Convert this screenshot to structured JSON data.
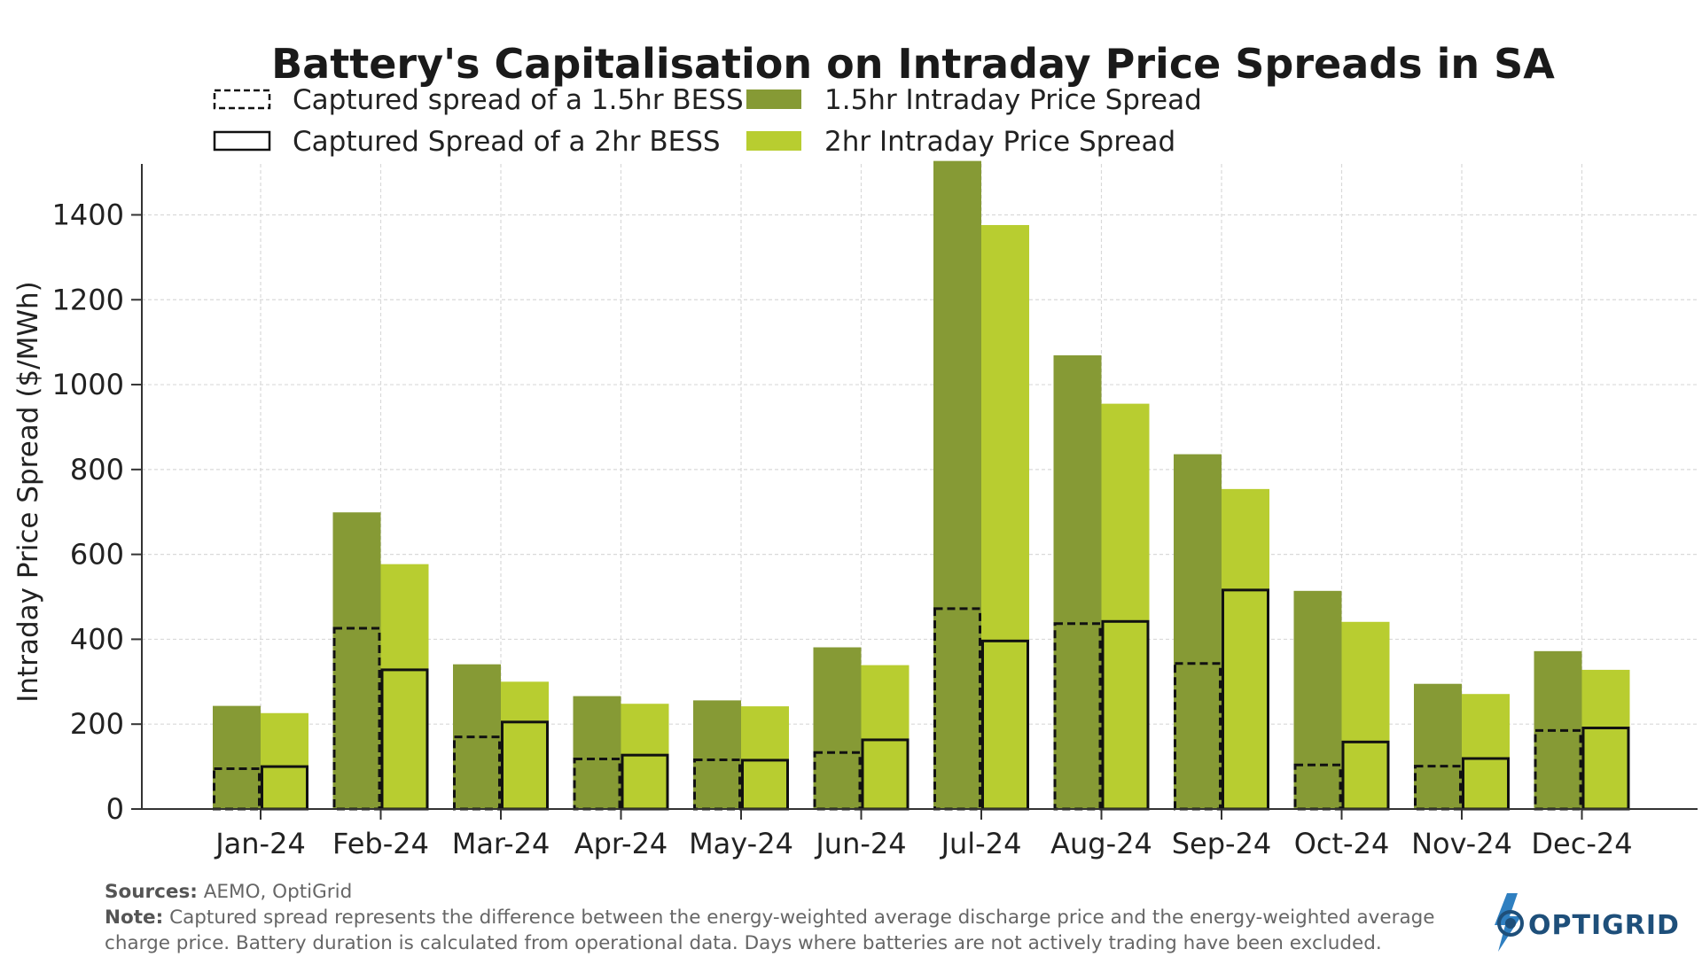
{
  "chart_data": {
    "type": "bar",
    "title": "Battery's Capitalisation on Intraday Price Spreads in SA",
    "xlabel": "",
    "ylabel": "Intraday Price Spread ($/MWh)",
    "ylim": [
      0,
      1520
    ],
    "yticks": [
      0,
      200,
      400,
      600,
      800,
      1000,
      1200,
      1400
    ],
    "grid": true,
    "legend_position": "top",
    "categories": [
      "Jan-24",
      "Feb-24",
      "Mar-24",
      "Apr-24",
      "May-24",
      "Jun-24",
      "Jul-24",
      "Aug-24",
      "Sep-24",
      "Oct-24",
      "Nov-24",
      "Dec-24"
    ],
    "series": [
      {
        "name": "1.5hr Intraday Price Spread",
        "color": "#869a35",
        "values": [
          243,
          699,
          341,
          266,
          256,
          381,
          1527,
          1069,
          836,
          514,
          295,
          372
        ]
      },
      {
        "name": "2hr Intraday Price Spread",
        "color": "#b8cd30",
        "values": [
          226,
          577,
          300,
          248,
          242,
          339,
          1376,
          955,
          754,
          441,
          271,
          328
        ]
      },
      {
        "name": "Captured spread of a 1.5hr BESS",
        "style": "dashed-outline",
        "values": [
          95,
          426,
          170,
          118,
          116,
          133,
          472,
          437,
          343,
          104,
          101,
          185
        ]
      },
      {
        "name": "Captured Spread of a 2hr BESS",
        "style": "solid-outline",
        "values": [
          100,
          328,
          205,
          127,
          115,
          163,
          396,
          442,
          516,
          158,
          119,
          191
        ]
      }
    ]
  },
  "footer": {
    "sources_label": "Sources:",
    "sources_text": " AEMO, OptiGrid",
    "note_label": "Note:",
    "note_text": " Captured spread represents the difference between the energy-weighted average discharge price and the energy-weighted average charge price. Battery duration is calculated from operational data. Days where batteries are not actively trading have been excluded."
  },
  "logo": {
    "text": "OPTIGRID",
    "color": "#1e4f7a"
  }
}
